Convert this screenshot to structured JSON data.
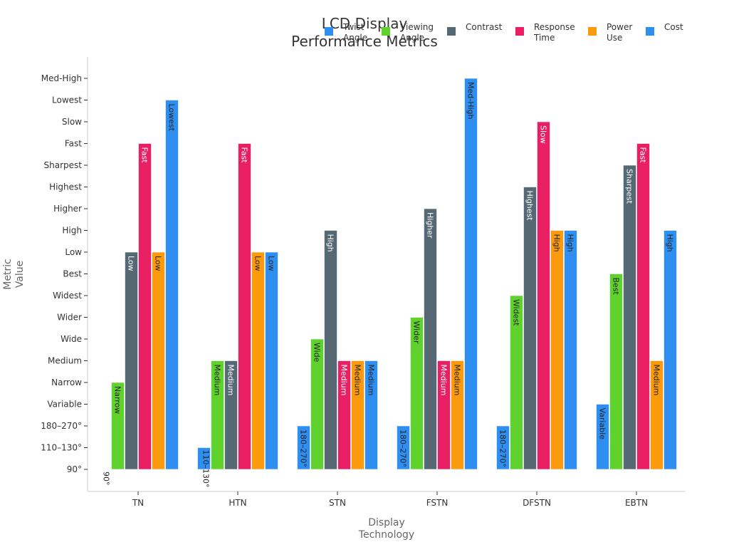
{
  "chart_data": {
    "type": "bar",
    "title": [
      "LCD Display",
      "Performance Metrics"
    ],
    "xlabel": [
      "Display",
      "Technology"
    ],
    "ylabel": [
      "Metric",
      "Value"
    ],
    "categories": [
      "TN",
      "HTN",
      "STN",
      "FSTN",
      "DFSTN",
      "EBTN"
    ],
    "y_levels": [
      "90°",
      "110–130°",
      "180–270°",
      "Variable",
      "Narrow",
      "Medium",
      "Wide",
      "Wider",
      "Widest",
      "Best",
      "Low",
      "High",
      "Higher",
      "Highest",
      "Sharpest",
      "Fast",
      "Slow",
      "Lowest",
      "Med-High"
    ],
    "legend_position": "top-right",
    "series": [
      {
        "name": [
          "Twist",
          "Angle"
        ],
        "color": "#2f8ff0",
        "text_color": "#222222",
        "values": [
          "90°",
          "110–130°",
          "180–270°",
          "180–270°",
          "180–270°",
          "Variable"
        ]
      },
      {
        "name": [
          "Viewing",
          "Angle"
        ],
        "color": "#5fd22e",
        "text_color": "#222222",
        "values": [
          "Narrow",
          "Medium",
          "Wide",
          "Wider",
          "Widest",
          "Best"
        ]
      },
      {
        "name": [
          "Contrast"
        ],
        "color": "#566873",
        "text_color": "#ffffff",
        "values": [
          "Low",
          "Medium",
          "High",
          "Higher",
          "Highest",
          "Sharpest"
        ]
      },
      {
        "name": [
          "Response",
          "Time"
        ],
        "color": "#e81f63",
        "text_color": "#ffffff",
        "values": [
          "Fast",
          "Fast",
          "Medium",
          "Medium",
          "Slow",
          "Fast"
        ]
      },
      {
        "name": [
          "Power",
          "Use"
        ],
        "color": "#fb9a0d",
        "text_color": "#222222",
        "values": [
          "Low",
          "Low",
          "Medium",
          "Medium",
          "High",
          "Medium"
        ]
      },
      {
        "name": [
          "Cost"
        ],
        "color": "#2f8ff0",
        "text_color": "#222222",
        "values": [
          "Lowest",
          "Low",
          "Medium",
          "Med-High",
          "High",
          "High"
        ]
      }
    ]
  }
}
